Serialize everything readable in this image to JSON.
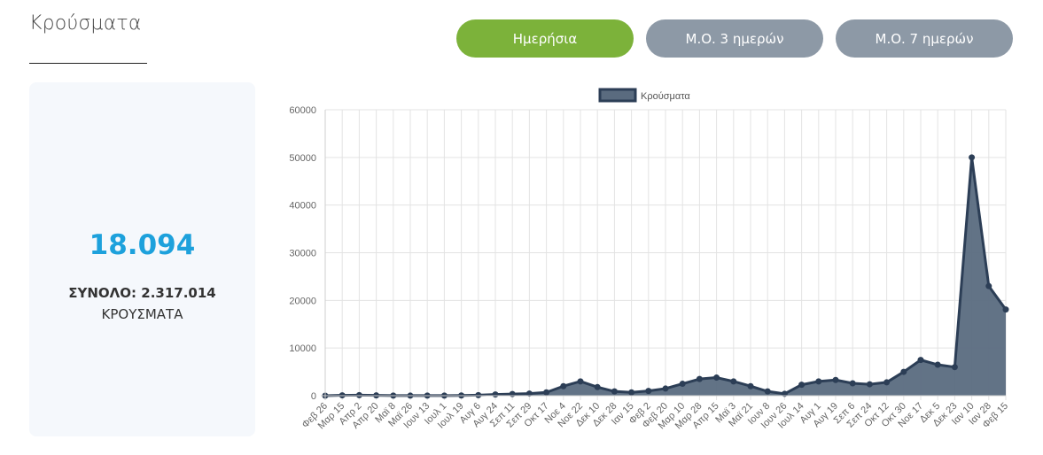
{
  "header": {
    "title": "Κρούσματα"
  },
  "toggle": {
    "daily": "Ημερήσια",
    "ma3": "Μ.Ο. 3 ημερών",
    "ma7": "Μ.Ο. 7 ημερών",
    "active": "daily"
  },
  "stats": {
    "value": "18.094",
    "total": "ΣΥΝΟΛΟ: 2.317.014",
    "label": "ΚΡΟΥΣΜΑΤΑ"
  },
  "colors": {
    "active_button": "#7cb23a",
    "inactive_button": "#8d99a6",
    "stat_value": "#1da1dc",
    "series_fill": "#5a6b7f",
    "series_line": "#2c3e56"
  },
  "chart_data": {
    "type": "line",
    "fill": true,
    "title": "",
    "xlabel": "",
    "ylabel": "",
    "ylim": [
      0,
      60000
    ],
    "yticks": [
      0,
      10000,
      20000,
      30000,
      40000,
      50000,
      60000
    ],
    "grid": true,
    "legend": "top-center",
    "x": [
      "Φεβ 26",
      "Μαρ 15",
      "Απρ 2",
      "Απρ 20",
      "Μαϊ 8",
      "Μαϊ 26",
      "Ιουν 13",
      "Ιουλ 1",
      "Ιουλ 19",
      "Αυγ 6",
      "Αυγ 24",
      "Σεπ 11",
      "Σεπ 29",
      "Οκτ 17",
      "Νοε 4",
      "Νοε 22",
      "Δεκ 10",
      "Δεκ 28",
      "Ιαν 15",
      "Φεβ 2",
      "Φεβ 20",
      "Μαρ 10",
      "Μαρ 28",
      "Απρ 15",
      "Μαϊ 3",
      "Μαϊ 21",
      "Ιουν 8",
      "Ιουν 26",
      "Ιουλ 14",
      "Αυγ 1",
      "Αυγ 19",
      "Σεπ 6",
      "Σεπ 24",
      "Οκτ 12",
      "Οκτ 30",
      "Νοε 17",
      "Δεκ 5",
      "Δεκ 23",
      "Ιαν 10",
      "Ιαν 28",
      "Φεβ 15"
    ],
    "series": [
      {
        "name": "Κρούσματα",
        "values": [
          5,
          80,
          120,
          60,
          20,
          15,
          20,
          30,
          40,
          120,
          250,
          350,
          450,
          700,
          2000,
          3000,
          1800,
          900,
          700,
          1000,
          1500,
          2500,
          3500,
          3800,
          3000,
          2000,
          900,
          400,
          2300,
          3000,
          3300,
          2600,
          2400,
          2800,
          5000,
          7500,
          6500,
          6000,
          50000,
          23000,
          18094
        ]
      }
    ]
  }
}
